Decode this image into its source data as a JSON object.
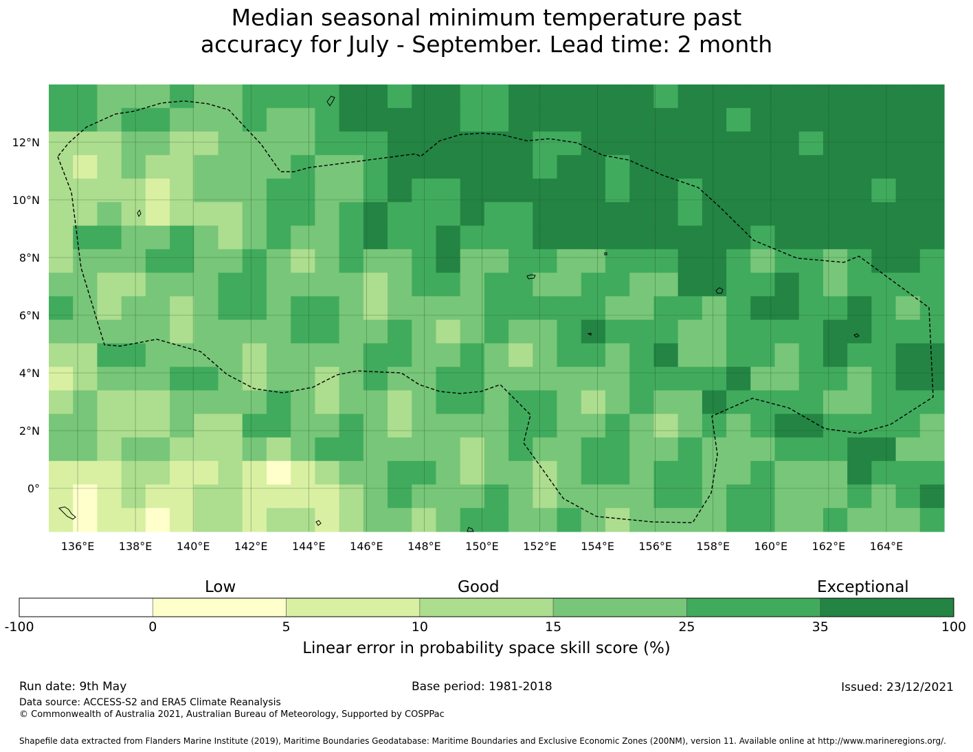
{
  "title": {
    "line1": "Median seasonal minimum temperature past",
    "line2": "accuracy for July - September. Lead time: 2 month"
  },
  "map": {
    "lon_labels": [
      "136°E",
      "138°E",
      "140°E",
      "142°E",
      "144°E",
      "146°E",
      "148°E",
      "150°E",
      "152°E",
      "154°E",
      "156°E",
      "158°E",
      "160°E",
      "162°E",
      "164°E"
    ],
    "lat_labels": [
      "12°N",
      "10°N",
      "8°N",
      "6°N",
      "4°N",
      "2°N",
      "0°"
    ],
    "lon_range": [
      135.0,
      166.0
    ],
    "lat_range": [
      -1.5,
      14.0
    ],
    "grid": true,
    "boundary": "Exclusive Economic Zone (dashed line)",
    "fill_description": "Gridded LEPS skill score (%) per cell, predominantly Good to Exceptional (green)"
  },
  "colorbar": {
    "category_labels": [
      "Low",
      "Good",
      "Exceptional"
    ],
    "ticks": [
      "-100",
      "0",
      "5",
      "10",
      "15",
      "25",
      "35",
      "100"
    ],
    "colors": [
      "#ffffff",
      "#ffffcc",
      "#d9f0a3",
      "#addd8e",
      "#78c679",
      "#41ab5d",
      "#238443"
    ],
    "label": "Linear error in probability space skill score (%)"
  },
  "footer": {
    "run_date": "Run date: 9th May",
    "base_period": "Base period: 1981-2018",
    "issued": "Issued: 23/12/2021",
    "data_source": "Data source: ACCESS-S2 and ERA5 Climate Reanalysis",
    "copyright": "© Commonwealth of Australia 2021, Australian Bureau of Meteorology, Supported by COSPPac",
    "shapefile": "Shapefile data extracted from Flanders Marine Institute (2019), Maritime Boundaries Geodatabase: Maritime Boundaries and Exclusive Economic Zones (200NM), version 11. Available online at http://www.marineregions.org/."
  }
}
